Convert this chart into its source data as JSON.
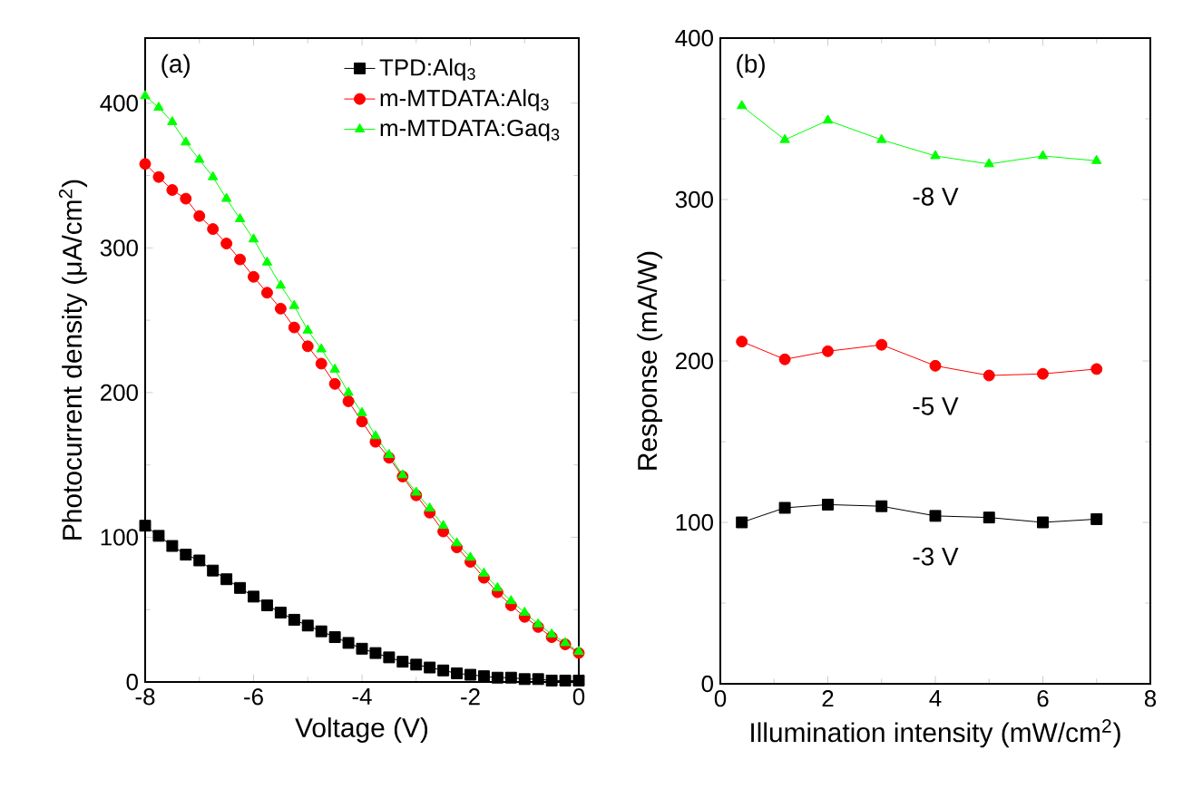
{
  "chart_data": [
    {
      "type": "line",
      "xlabel": "Voltage (V)",
      "ylabel": "Photocurrent density (μA/cm$^{2}$)",
      "annotations": [
        "(a)"
      ],
      "x": [
        -8,
        -7.75,
        -7.5,
        -7.25,
        -7,
        -6.75,
        -6.5,
        -6.25,
        -6,
        -5.75,
        -5.5,
        -5.25,
        -5,
        -4.75,
        -4.5,
        -4.25,
        -4,
        -3.75,
        -3.5,
        -3.25,
        -3,
        -2.75,
        -2.5,
        -2.25,
        -2,
        -1.75,
        -1.5,
        -1.25,
        -1,
        -0.75,
        -0.5,
        -0.25,
        0
      ],
      "xlim": [
        -8,
        0
      ],
      "xticks": [
        -8,
        -6,
        -4,
        -2,
        0
      ],
      "ylim": [
        0,
        445
      ],
      "yticks": [
        0,
        100,
        200,
        300,
        400
      ],
      "legend": "top right",
      "grid": false,
      "line_style": "solid",
      "series": [
        {
          "name": "TPD:Alq$_{3}$",
          "color": "#000000",
          "marker": "square",
          "values": [
            108,
            101,
            94,
            88,
            84,
            77,
            71,
            65,
            59,
            53,
            48,
            43,
            39,
            35,
            31,
            27,
            23,
            20,
            17,
            14,
            12,
            10,
            8,
            6,
            5,
            4,
            3,
            3,
            2,
            2,
            1,
            1,
            1
          ]
        },
        {
          "name": "m-MTDATA:Alq$_{3}$",
          "color": "#ff0000",
          "marker": "circle",
          "values": [
            358,
            349,
            340,
            334,
            322,
            313,
            303,
            292,
            280,
            269,
            258,
            245,
            232,
            220,
            206,
            194,
            180,
            166,
            155,
            142,
            129,
            117,
            104,
            93,
            83,
            72,
            62,
            53,
            45,
            38,
            31,
            26,
            20
          ]
        },
        {
          "name": "m-MTDATA:Gaq$_{3}$",
          "color": "#00ff00",
          "marker": "triangle",
          "values": [
            405,
            397,
            387,
            373,
            361,
            349,
            334,
            320,
            306,
            290,
            274,
            260,
            243,
            230,
            216,
            200,
            186,
            170,
            157,
            143,
            131,
            120,
            108,
            96,
            86,
            75,
            65,
            56,
            48,
            40,
            33,
            27,
            21
          ]
        }
      ]
    },
    {
      "type": "line",
      "xlabel": "Illumination intensity (mW/cm$^{2}$)",
      "ylabel": "Response (mA/W)",
      "annotations": [
        "(b)"
      ],
      "x": [
        0.4,
        1.2,
        2,
        3,
        4,
        5,
        6,
        7
      ],
      "xlim": [
        0,
        8
      ],
      "xticks": [
        0,
        2,
        4,
        6,
        8
      ],
      "ylim": [
        0,
        400
      ],
      "yticks": [
        0,
        100,
        200,
        300,
        400
      ],
      "legend": false,
      "grid": false,
      "line_style": "solid",
      "series": [
        {
          "name": "-8 V",
          "color": "#00ff00",
          "marker": "triangle",
          "values": [
            358,
            337,
            349,
            337,
            327,
            322,
            327,
            324
          ]
        },
        {
          "name": "-5 V",
          "color": "#ff0000",
          "marker": "circle",
          "values": [
            212,
            201,
            206,
            210,
            197,
            191,
            192,
            195
          ]
        },
        {
          "name": "-3 V",
          "color": "#000000",
          "marker": "square",
          "values": [
            100,
            109,
            111,
            110,
            104,
            103,
            100,
            102
          ]
        }
      ]
    }
  ]
}
